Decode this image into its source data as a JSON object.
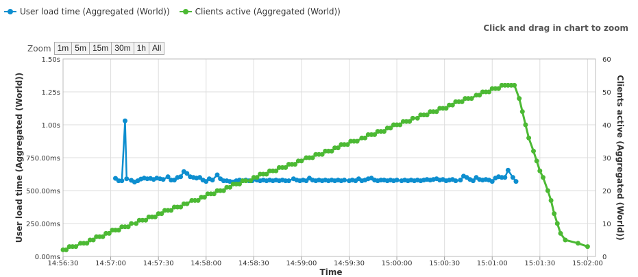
{
  "legend": {
    "series1": "User load time (Aggregated (World))",
    "series2": "Clients active (Aggregated (World))"
  },
  "zoom_hint": "Click and drag in chart to zoom",
  "zoom": {
    "label": "Zoom",
    "buttons": [
      "1m",
      "5m",
      "15m",
      "30m",
      "1h",
      "All"
    ]
  },
  "colors": {
    "load": "#0d8ecf",
    "clients": "#4cb934",
    "grid": "#dddddd"
  },
  "chart_data": {
    "type": "line",
    "xlabel": "Time",
    "ylabel_left": "User load time (Aggregated (World))",
    "ylabel_right": "Clients active (Aggregated (World))",
    "x_ticks": [
      "14:56:30",
      "14:57:00",
      "14:57:30",
      "14:58:00",
      "14:58:30",
      "14:59:00",
      "14:59:30",
      "15:00:00",
      "15:00:30",
      "15:01:00",
      "15:01:30",
      "15:02:00"
    ],
    "x_range_seconds": [
      "14:56:30",
      "15:02:05"
    ],
    "y_left_ticks": [
      "0.00ms",
      "250.00ms",
      "500.00ms",
      "750.00ms",
      "1.00s",
      "1.25s",
      "1.50s"
    ],
    "y_left_range_ms": [
      0,
      1500
    ],
    "y_right_ticks": [
      "0",
      "10",
      "20",
      "30",
      "40",
      "50",
      "60"
    ],
    "y_right_range": [
      0,
      60
    ],
    "grid": true,
    "legend_position": "top-left",
    "series": [
      {
        "name": "User load time (Aggregated (World))",
        "axis": "left",
        "unit": "ms",
        "points": [
          [
            "14:57:03",
            593
          ],
          [
            "14:57:05",
            575
          ],
          [
            "14:57:07",
            575
          ],
          [
            "14:57:09",
            1030
          ],
          [
            "14:57:10",
            590
          ],
          [
            "14:57:13",
            578
          ],
          [
            "14:57:15",
            565
          ],
          [
            "14:57:17",
            575
          ],
          [
            "14:57:19",
            588
          ],
          [
            "14:57:21",
            595
          ],
          [
            "14:57:23",
            590
          ],
          [
            "14:57:25",
            592
          ],
          [
            "14:57:27",
            585
          ],
          [
            "14:57:29",
            595
          ],
          [
            "14:57:31",
            590
          ],
          [
            "14:57:33",
            585
          ],
          [
            "14:57:36",
            605
          ],
          [
            "14:57:38",
            580
          ],
          [
            "14:57:40",
            580
          ],
          [
            "14:57:42",
            600
          ],
          [
            "14:57:44",
            605
          ],
          [
            "14:57:46",
            645
          ],
          [
            "14:57:48",
            630
          ],
          [
            "14:57:50",
            605
          ],
          [
            "14:57:52",
            600
          ],
          [
            "14:57:54",
            595
          ],
          [
            "14:57:56",
            600
          ],
          [
            "14:57:58",
            580
          ],
          [
            "14:58:00",
            570
          ],
          [
            "14:58:02",
            590
          ],
          [
            "14:58:04",
            580
          ],
          [
            "14:58:07",
            620
          ],
          [
            "14:58:09",
            590
          ],
          [
            "14:58:11",
            575
          ],
          [
            "14:58:13",
            575
          ],
          [
            "14:58:15",
            570
          ],
          [
            "14:58:17",
            565
          ],
          [
            "14:58:19",
            575
          ],
          [
            "14:58:21",
            580
          ],
          [
            "14:58:23",
            575
          ],
          [
            "14:58:25",
            580
          ],
          [
            "14:58:27",
            575
          ],
          [
            "14:58:29",
            575
          ],
          [
            "14:58:32",
            580
          ],
          [
            "14:58:34",
            575
          ],
          [
            "14:58:36",
            580
          ],
          [
            "14:58:38",
            575
          ],
          [
            "14:58:40",
            580
          ],
          [
            "14:58:42",
            575
          ],
          [
            "14:58:44",
            580
          ],
          [
            "14:58:46",
            575
          ],
          [
            "14:58:48",
            580
          ],
          [
            "14:58:50",
            575
          ],
          [
            "14:58:52",
            575
          ],
          [
            "14:58:55",
            590
          ],
          [
            "14:58:57",
            580
          ],
          [
            "14:58:59",
            575
          ],
          [
            "14:59:01",
            580
          ],
          [
            "14:59:03",
            575
          ],
          [
            "14:59:05",
            595
          ],
          [
            "14:59:07",
            580
          ],
          [
            "14:59:09",
            575
          ],
          [
            "14:59:11",
            580
          ],
          [
            "14:59:13",
            575
          ],
          [
            "14:59:15",
            580
          ],
          [
            "14:59:17",
            575
          ],
          [
            "14:59:19",
            580
          ],
          [
            "14:59:21",
            575
          ],
          [
            "14:59:23",
            580
          ],
          [
            "14:59:25",
            575
          ],
          [
            "14:59:27",
            580
          ],
          [
            "14:59:30",
            575
          ],
          [
            "14:59:32",
            580
          ],
          [
            "14:59:34",
            575
          ],
          [
            "14:59:36",
            590
          ],
          [
            "14:59:38",
            575
          ],
          [
            "14:59:40",
            580
          ],
          [
            "14:59:42",
            590
          ],
          [
            "14:59:44",
            595
          ],
          [
            "14:59:46",
            580
          ],
          [
            "14:59:48",
            575
          ],
          [
            "14:59:50",
            580
          ],
          [
            "14:59:52",
            580
          ],
          [
            "14:59:54",
            575
          ],
          [
            "14:59:56",
            580
          ],
          [
            "14:59:58",
            575
          ],
          [
            "15:00:00",
            580
          ],
          [
            "15:00:03",
            575
          ],
          [
            "15:00:05",
            580
          ],
          [
            "15:00:07",
            575
          ],
          [
            "15:00:09",
            580
          ],
          [
            "15:00:11",
            575
          ],
          [
            "15:00:13",
            580
          ],
          [
            "15:00:15",
            575
          ],
          [
            "15:00:17",
            580
          ],
          [
            "15:00:19",
            585
          ],
          [
            "15:00:21",
            580
          ],
          [
            "15:00:23",
            585
          ],
          [
            "15:00:25",
            590
          ],
          [
            "15:00:27",
            580
          ],
          [
            "15:00:29",
            585
          ],
          [
            "15:00:31",
            575
          ],
          [
            "15:00:33",
            580
          ],
          [
            "15:00:35",
            585
          ],
          [
            "15:00:37",
            575
          ],
          [
            "15:00:40",
            580
          ],
          [
            "15:00:42",
            610
          ],
          [
            "15:00:44",
            600
          ],
          [
            "15:00:46",
            585
          ],
          [
            "15:00:48",
            575
          ],
          [
            "15:00:50",
            600
          ],
          [
            "15:00:52",
            585
          ],
          [
            "15:00:54",
            580
          ],
          [
            "15:00:56",
            585
          ],
          [
            "15:00:58",
            580
          ],
          [
            "15:01:00",
            570
          ],
          [
            "15:01:02",
            595
          ],
          [
            "15:01:04",
            605
          ],
          [
            "15:01:06",
            600
          ],
          [
            "15:01:08",
            600
          ],
          [
            "15:01:10",
            655
          ],
          [
            "15:01:13",
            600
          ],
          [
            "15:01:15",
            570
          ]
        ]
      },
      {
        "name": "Clients active (Aggregated (World))",
        "axis": "right",
        "points": [
          [
            "14:56:30",
            2
          ],
          [
            "14:56:32",
            2
          ],
          [
            "14:56:34",
            3
          ],
          [
            "14:56:36",
            3
          ],
          [
            "14:56:38",
            3
          ],
          [
            "14:56:41",
            4
          ],
          [
            "14:56:43",
            4
          ],
          [
            "14:56:45",
            4
          ],
          [
            "14:56:47",
            5
          ],
          [
            "14:56:49",
            5
          ],
          [
            "14:56:51",
            6
          ],
          [
            "14:56:53",
            6
          ],
          [
            "14:56:55",
            6
          ],
          [
            "14:56:57",
            7
          ],
          [
            "14:56:59",
            7
          ],
          [
            "14:57:01",
            8
          ],
          [
            "14:57:03",
            8
          ],
          [
            "14:57:05",
            8
          ],
          [
            "14:57:07",
            9
          ],
          [
            "14:57:09",
            9
          ],
          [
            "14:57:11",
            9
          ],
          [
            "14:57:13",
            10
          ],
          [
            "14:57:16",
            10
          ],
          [
            "14:57:18",
            11
          ],
          [
            "14:57:20",
            11
          ],
          [
            "14:57:22",
            11
          ],
          [
            "14:57:24",
            12
          ],
          [
            "14:57:26",
            12
          ],
          [
            "14:57:28",
            12
          ],
          [
            "14:57:30",
            13
          ],
          [
            "14:57:32",
            13
          ],
          [
            "14:57:34",
            14
          ],
          [
            "14:57:36",
            14
          ],
          [
            "14:57:38",
            14
          ],
          [
            "14:57:40",
            15
          ],
          [
            "14:57:42",
            15
          ],
          [
            "14:57:44",
            15
          ],
          [
            "14:57:46",
            16
          ],
          [
            "14:57:48",
            16
          ],
          [
            "14:57:51",
            17
          ],
          [
            "14:57:53",
            17
          ],
          [
            "14:57:55",
            17
          ],
          [
            "14:57:57",
            18
          ],
          [
            "14:57:59",
            18
          ],
          [
            "14:58:01",
            19
          ],
          [
            "14:58:03",
            19
          ],
          [
            "14:58:05",
            19
          ],
          [
            "14:58:07",
            20
          ],
          [
            "14:58:09",
            20
          ],
          [
            "14:58:11",
            20
          ],
          [
            "14:58:13",
            21
          ],
          [
            "14:58:15",
            21
          ],
          [
            "14:58:17",
            22
          ],
          [
            "14:58:19",
            22
          ],
          [
            "14:58:21",
            22
          ],
          [
            "14:58:23",
            23
          ],
          [
            "14:58:25",
            23
          ],
          [
            "14:58:28",
            23
          ],
          [
            "14:58:30",
            24
          ],
          [
            "14:58:32",
            24
          ],
          [
            "14:58:34",
            25
          ],
          [
            "14:58:36",
            25
          ],
          [
            "14:58:38",
            25
          ],
          [
            "14:58:40",
            26
          ],
          [
            "14:58:42",
            26
          ],
          [
            "14:58:44",
            26
          ],
          [
            "14:58:46",
            27
          ],
          [
            "14:58:48",
            27
          ],
          [
            "14:58:50",
            27
          ],
          [
            "14:58:52",
            28
          ],
          [
            "14:58:54",
            28
          ],
          [
            "14:58:56",
            28
          ],
          [
            "14:58:58",
            29
          ],
          [
            "14:59:00",
            29
          ],
          [
            "14:59:03",
            30
          ],
          [
            "14:59:05",
            30
          ],
          [
            "14:59:07",
            30
          ],
          [
            "14:59:09",
            31
          ],
          [
            "14:59:11",
            31
          ],
          [
            "14:59:13",
            31
          ],
          [
            "14:59:15",
            32
          ],
          [
            "14:59:17",
            32
          ],
          [
            "14:59:19",
            32
          ],
          [
            "14:59:21",
            33
          ],
          [
            "14:59:23",
            33
          ],
          [
            "14:59:25",
            34
          ],
          [
            "14:59:27",
            34
          ],
          [
            "14:59:29",
            34
          ],
          [
            "14:59:31",
            35
          ],
          [
            "14:59:33",
            35
          ],
          [
            "14:59:35",
            35
          ],
          [
            "14:59:38",
            36
          ],
          [
            "14:59:40",
            36
          ],
          [
            "14:59:42",
            37
          ],
          [
            "14:59:44",
            37
          ],
          [
            "14:59:46",
            37
          ],
          [
            "14:59:48",
            38
          ],
          [
            "14:59:50",
            38
          ],
          [
            "14:59:52",
            38
          ],
          [
            "14:59:54",
            39
          ],
          [
            "14:59:56",
            39
          ],
          [
            "14:59:58",
            40
          ],
          [
            "15:00:00",
            40
          ],
          [
            "15:00:02",
            40
          ],
          [
            "15:00:04",
            41
          ],
          [
            "15:00:06",
            41
          ],
          [
            "15:00:08",
            41
          ],
          [
            "15:00:10",
            42
          ],
          [
            "15:00:13",
            42
          ],
          [
            "15:00:15",
            43
          ],
          [
            "15:00:17",
            43
          ],
          [
            "15:00:19",
            43
          ],
          [
            "15:00:21",
            44
          ],
          [
            "15:00:23",
            44
          ],
          [
            "15:00:25",
            44
          ],
          [
            "15:00:27",
            45
          ],
          [
            "15:00:29",
            45
          ],
          [
            "15:00:31",
            45
          ],
          [
            "15:00:33",
            46
          ],
          [
            "15:00:35",
            46
          ],
          [
            "15:00:37",
            47
          ],
          [
            "15:00:39",
            47
          ],
          [
            "15:00:41",
            47
          ],
          [
            "15:00:43",
            48
          ],
          [
            "15:00:45",
            48
          ],
          [
            "15:00:47",
            48
          ],
          [
            "15:00:50",
            49
          ],
          [
            "15:00:52",
            49
          ],
          [
            "15:00:54",
            50
          ],
          [
            "15:00:56",
            50
          ],
          [
            "15:00:58",
            50
          ],
          [
            "15:01:00",
            51
          ],
          [
            "15:01:02",
            51
          ],
          [
            "15:01:04",
            51
          ],
          [
            "15:01:06",
            52
          ],
          [
            "15:01:08",
            52
          ],
          [
            "15:01:10",
            52
          ],
          [
            "15:01:12",
            52
          ],
          [
            "15:01:14",
            52
          ],
          [
            "15:01:17",
            48
          ],
          [
            "15:01:19",
            44
          ],
          [
            "15:01:21",
            40
          ],
          [
            "15:01:23",
            36
          ],
          [
            "15:01:26",
            32
          ],
          [
            "15:01:28",
            29
          ],
          [
            "15:01:30",
            26
          ],
          [
            "15:01:32",
            24
          ],
          [
            "15:01:35",
            20
          ],
          [
            "15:01:37",
            17
          ],
          [
            "15:01:39",
            13
          ],
          [
            "15:01:41",
            10
          ],
          [
            "15:01:43",
            7
          ],
          [
            "15:01:46",
            5
          ],
          [
            "15:01:54",
            4
          ],
          [
            "15:02:00",
            3
          ]
        ]
      }
    ]
  }
}
